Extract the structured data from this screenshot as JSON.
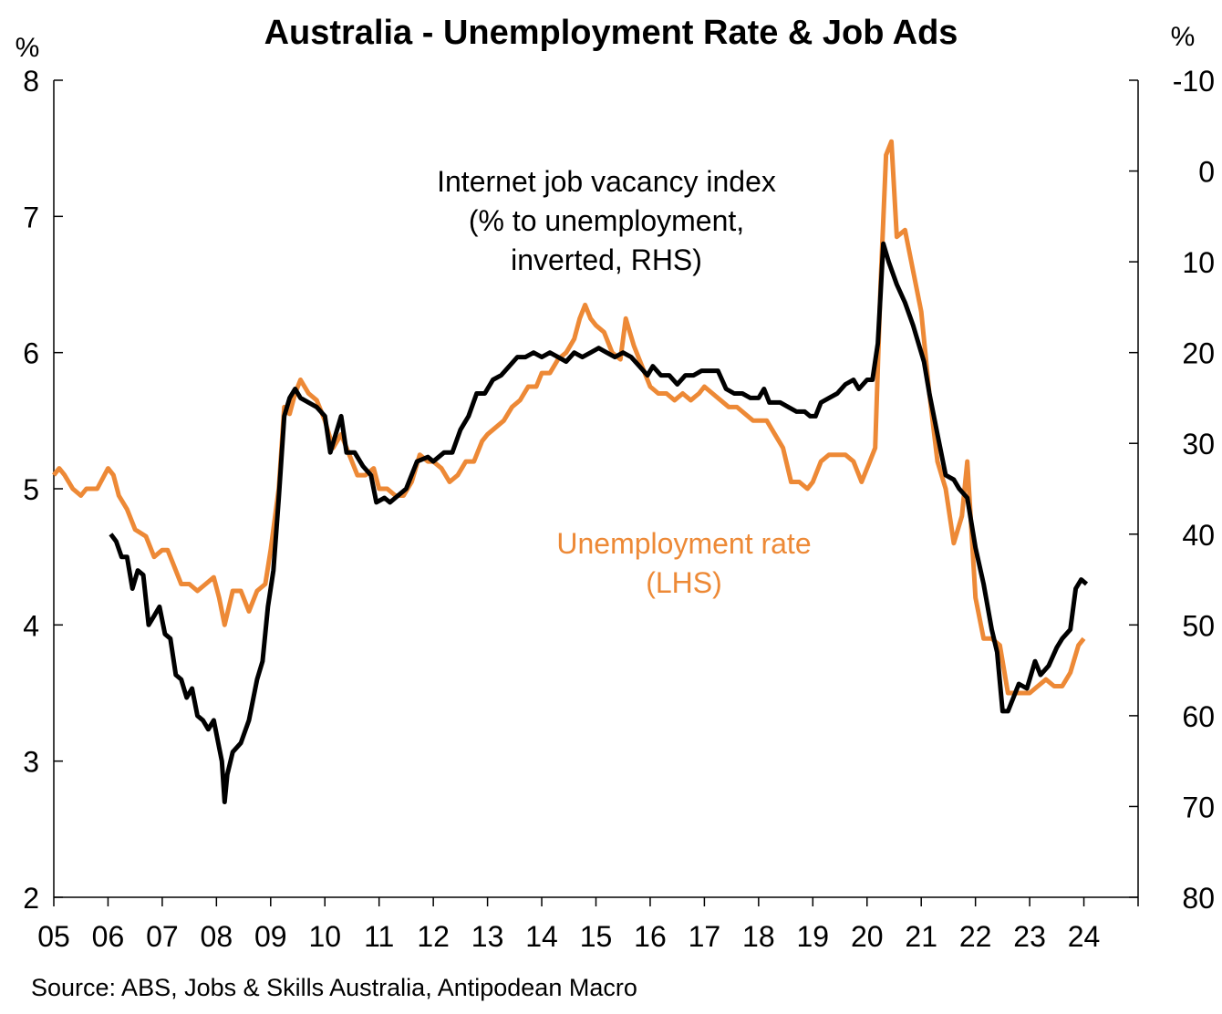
{
  "chart_data": {
    "type": "line",
    "title": "Australia - Unemployment Rate & Job Ads",
    "left_axis": {
      "unit": "%",
      "min": 2,
      "max": 8,
      "ticks": [
        "2",
        "3",
        "4",
        "5",
        "6",
        "7",
        "8"
      ]
    },
    "right_axis": {
      "unit": "%",
      "inverted": true,
      "min": -10,
      "max": 80,
      "ticks": [
        "-10",
        "0",
        "10",
        "20",
        "30",
        "40",
        "50",
        "60",
        "70",
        "80"
      ]
    },
    "x_axis": {
      "min": 2005,
      "max": 2025,
      "tick_labels": [
        "05",
        "06",
        "07",
        "08",
        "09",
        "10",
        "11",
        "12",
        "13",
        "14",
        "15",
        "16",
        "17",
        "18",
        "19",
        "20",
        "21",
        "22",
        "23",
        "24"
      ]
    },
    "grid": false,
    "source": "Source: ABS, Jobs & Skills Australia, Antipodean Macro",
    "annotations": {
      "job_ads": [
        "Internet job vacancy index",
        "(% to unemployment,",
        "inverted, RHS)"
      ],
      "unemployment": [
        "Unemployment rate",
        "(LHS)"
      ]
    },
    "colors": {
      "unemployment": "#ED8936",
      "job_ads": "#000000"
    },
    "series": [
      {
        "key": "unemployment",
        "axis": "left",
        "points": [
          [
            2005.0,
            5.1
          ],
          [
            2005.1,
            5.15
          ],
          [
            2005.2,
            5.1
          ],
          [
            2005.35,
            5.0
          ],
          [
            2005.5,
            4.95
          ],
          [
            2005.6,
            5.0
          ],
          [
            2005.8,
            5.0
          ],
          [
            2006.0,
            5.15
          ],
          [
            2006.1,
            5.1
          ],
          [
            2006.2,
            4.95
          ],
          [
            2006.35,
            4.85
          ],
          [
            2006.5,
            4.7
          ],
          [
            2006.7,
            4.65
          ],
          [
            2006.85,
            4.5
          ],
          [
            2007.0,
            4.55
          ],
          [
            2007.1,
            4.55
          ],
          [
            2007.2,
            4.45
          ],
          [
            2007.35,
            4.3
          ],
          [
            2007.5,
            4.3
          ],
          [
            2007.65,
            4.25
          ],
          [
            2007.8,
            4.3
          ],
          [
            2007.95,
            4.35
          ],
          [
            2008.05,
            4.2
          ],
          [
            2008.15,
            4.0
          ],
          [
            2008.3,
            4.25
          ],
          [
            2008.45,
            4.25
          ],
          [
            2008.6,
            4.1
          ],
          [
            2008.75,
            4.25
          ],
          [
            2008.9,
            4.3
          ],
          [
            2009.0,
            4.55
          ],
          [
            2009.15,
            5.0
          ],
          [
            2009.25,
            5.6
          ],
          [
            2009.35,
            5.55
          ],
          [
            2009.45,
            5.7
          ],
          [
            2009.55,
            5.8
          ],
          [
            2009.7,
            5.7
          ],
          [
            2009.85,
            5.65
          ],
          [
            2010.0,
            5.5
          ],
          [
            2010.15,
            5.3
          ],
          [
            2010.3,
            5.4
          ],
          [
            2010.45,
            5.25
          ],
          [
            2010.6,
            5.1
          ],
          [
            2010.75,
            5.1
          ],
          [
            2010.9,
            5.15
          ],
          [
            2011.0,
            5.0
          ],
          [
            2011.15,
            5.0
          ],
          [
            2011.3,
            4.95
          ],
          [
            2011.45,
            4.95
          ],
          [
            2011.6,
            5.05
          ],
          [
            2011.75,
            5.25
          ],
          [
            2011.9,
            5.2
          ],
          [
            2012.0,
            5.2
          ],
          [
            2012.15,
            5.15
          ],
          [
            2012.3,
            5.05
          ],
          [
            2012.45,
            5.1
          ],
          [
            2012.6,
            5.2
          ],
          [
            2012.75,
            5.2
          ],
          [
            2012.9,
            5.35
          ],
          [
            2013.0,
            5.4
          ],
          [
            2013.15,
            5.45
          ],
          [
            2013.3,
            5.5
          ],
          [
            2013.45,
            5.6
          ],
          [
            2013.6,
            5.65
          ],
          [
            2013.75,
            5.75
          ],
          [
            2013.9,
            5.75
          ],
          [
            2014.0,
            5.85
          ],
          [
            2014.15,
            5.85
          ],
          [
            2014.3,
            5.95
          ],
          [
            2014.45,
            6.0
          ],
          [
            2014.6,
            6.1
          ],
          [
            2014.7,
            6.25
          ],
          [
            2014.8,
            6.35
          ],
          [
            2014.9,
            6.25
          ],
          [
            2015.0,
            6.2
          ],
          [
            2015.15,
            6.15
          ],
          [
            2015.3,
            6.0
          ],
          [
            2015.45,
            5.95
          ],
          [
            2015.55,
            6.25
          ],
          [
            2015.7,
            6.05
          ],
          [
            2015.85,
            5.9
          ],
          [
            2016.0,
            5.75
          ],
          [
            2016.15,
            5.7
          ],
          [
            2016.3,
            5.7
          ],
          [
            2016.45,
            5.65
          ],
          [
            2016.6,
            5.7
          ],
          [
            2016.75,
            5.65
          ],
          [
            2016.9,
            5.7
          ],
          [
            2017.0,
            5.75
          ],
          [
            2017.15,
            5.7
          ],
          [
            2017.3,
            5.65
          ],
          [
            2017.45,
            5.6
          ],
          [
            2017.6,
            5.6
          ],
          [
            2017.75,
            5.55
          ],
          [
            2017.9,
            5.5
          ],
          [
            2018.0,
            5.5
          ],
          [
            2018.15,
            5.5
          ],
          [
            2018.3,
            5.4
          ],
          [
            2018.45,
            5.3
          ],
          [
            2018.6,
            5.05
          ],
          [
            2018.75,
            5.05
          ],
          [
            2018.9,
            5.0
          ],
          [
            2019.0,
            5.05
          ],
          [
            2019.15,
            5.2
          ],
          [
            2019.3,
            5.25
          ],
          [
            2019.45,
            5.25
          ],
          [
            2019.6,
            5.25
          ],
          [
            2019.75,
            5.2
          ],
          [
            2019.9,
            5.05
          ],
          [
            2020.0,
            5.15
          ],
          [
            2020.15,
            5.3
          ],
          [
            2020.25,
            6.5
          ],
          [
            2020.35,
            7.45
          ],
          [
            2020.45,
            7.55
          ],
          [
            2020.55,
            6.85
          ],
          [
            2020.7,
            6.9
          ],
          [
            2020.85,
            6.6
          ],
          [
            2021.0,
            6.3
          ],
          [
            2021.15,
            5.7
          ],
          [
            2021.3,
            5.2
          ],
          [
            2021.45,
            5.0
          ],
          [
            2021.6,
            4.6
          ],
          [
            2021.75,
            4.8
          ],
          [
            2021.85,
            5.2
          ],
          [
            2022.0,
            4.2
          ],
          [
            2022.15,
            3.9
          ],
          [
            2022.3,
            3.9
          ],
          [
            2022.45,
            3.85
          ],
          [
            2022.6,
            3.5
          ],
          [
            2022.75,
            3.5
          ],
          [
            2022.9,
            3.5
          ],
          [
            2023.0,
            3.5
          ],
          [
            2023.15,
            3.55
          ],
          [
            2023.3,
            3.6
          ],
          [
            2023.45,
            3.55
          ],
          [
            2023.6,
            3.55
          ],
          [
            2023.75,
            3.65
          ],
          [
            2023.9,
            3.85
          ],
          [
            2024.0,
            3.9
          ]
        ]
      },
      {
        "key": "job_ads",
        "axis": "right",
        "points": [
          [
            2006.05,
            40.0
          ],
          [
            2006.15,
            40.8
          ],
          [
            2006.25,
            42.5
          ],
          [
            2006.35,
            42.5
          ],
          [
            2006.45,
            46.0
          ],
          [
            2006.55,
            44.0
          ],
          [
            2006.65,
            44.5
          ],
          [
            2006.75,
            50.0
          ],
          [
            2006.85,
            49.0
          ],
          [
            2006.95,
            48.0
          ],
          [
            2007.05,
            51.0
          ],
          [
            2007.15,
            51.5
          ],
          [
            2007.25,
            55.5
          ],
          [
            2007.35,
            56.0
          ],
          [
            2007.45,
            58.0
          ],
          [
            2007.55,
            57.0
          ],
          [
            2007.65,
            60.0
          ],
          [
            2007.75,
            60.5
          ],
          [
            2007.85,
            61.5
          ],
          [
            2007.95,
            60.5
          ],
          [
            2008.05,
            63.5
          ],
          [
            2008.1,
            65.0
          ],
          [
            2008.15,
            69.5
          ],
          [
            2008.2,
            66.5
          ],
          [
            2008.3,
            64.0
          ],
          [
            2008.45,
            63.0
          ],
          [
            2008.6,
            60.5
          ],
          [
            2008.75,
            56.0
          ],
          [
            2008.85,
            54.0
          ],
          [
            2008.95,
            48.0
          ],
          [
            2009.05,
            44.0
          ],
          [
            2009.15,
            36.0
          ],
          [
            2009.25,
            27.0
          ],
          [
            2009.35,
            25.0
          ],
          [
            2009.45,
            24.0
          ],
          [
            2009.55,
            25.0
          ],
          [
            2009.7,
            25.5
          ],
          [
            2009.85,
            26.0
          ],
          [
            2010.0,
            27.0
          ],
          [
            2010.1,
            31.0
          ],
          [
            2010.2,
            29.0
          ],
          [
            2010.3,
            27.0
          ],
          [
            2010.4,
            31.0
          ],
          [
            2010.55,
            31.0
          ],
          [
            2010.7,
            32.5
          ],
          [
            2010.85,
            33.5
          ],
          [
            2010.95,
            36.5
          ],
          [
            2011.1,
            36.0
          ],
          [
            2011.2,
            36.5
          ],
          [
            2011.3,
            36.0
          ],
          [
            2011.5,
            35.0
          ],
          [
            2011.7,
            32.0
          ],
          [
            2011.9,
            31.5
          ],
          [
            2012.0,
            32.0
          ],
          [
            2012.2,
            31.0
          ],
          [
            2012.35,
            31.0
          ],
          [
            2012.5,
            28.5
          ],
          [
            2012.65,
            27.0
          ],
          [
            2012.8,
            24.5
          ],
          [
            2012.95,
            24.5
          ],
          [
            2013.1,
            23.0
          ],
          [
            2013.25,
            22.5
          ],
          [
            2013.4,
            21.5
          ],
          [
            2013.55,
            20.5
          ],
          [
            2013.7,
            20.5
          ],
          [
            2013.85,
            20.0
          ],
          [
            2014.0,
            20.5
          ],
          [
            2014.15,
            20.0
          ],
          [
            2014.3,
            20.5
          ],
          [
            2014.45,
            21.0
          ],
          [
            2014.6,
            20.0
          ],
          [
            2014.75,
            20.5
          ],
          [
            2014.9,
            20.0
          ],
          [
            2015.05,
            19.5
          ],
          [
            2015.2,
            20.0
          ],
          [
            2015.35,
            20.5
          ],
          [
            2015.5,
            20.0
          ],
          [
            2015.65,
            20.5
          ],
          [
            2015.8,
            21.5
          ],
          [
            2015.95,
            22.5
          ],
          [
            2016.05,
            21.5
          ],
          [
            2016.2,
            22.5
          ],
          [
            2016.35,
            22.5
          ],
          [
            2016.5,
            23.5
          ],
          [
            2016.65,
            22.5
          ],
          [
            2016.8,
            22.5
          ],
          [
            2016.95,
            22.0
          ],
          [
            2017.1,
            22.0
          ],
          [
            2017.25,
            22.0
          ],
          [
            2017.4,
            24.0
          ],
          [
            2017.55,
            24.5
          ],
          [
            2017.7,
            24.5
          ],
          [
            2017.85,
            25.0
          ],
          [
            2018.0,
            25.0
          ],
          [
            2018.1,
            24.0
          ],
          [
            2018.2,
            25.5
          ],
          [
            2018.4,
            25.5
          ],
          [
            2018.55,
            26.0
          ],
          [
            2018.7,
            26.5
          ],
          [
            2018.85,
            26.5
          ],
          [
            2018.95,
            27.0
          ],
          [
            2019.05,
            27.0
          ],
          [
            2019.15,
            25.5
          ],
          [
            2019.3,
            25.0
          ],
          [
            2019.45,
            24.5
          ],
          [
            2019.6,
            23.5
          ],
          [
            2019.75,
            23.0
          ],
          [
            2019.85,
            24.0
          ],
          [
            2020.0,
            23.0
          ],
          [
            2020.1,
            23.0
          ],
          [
            2020.2,
            19.0
          ],
          [
            2020.3,
            8.0
          ],
          [
            2020.4,
            10.0
          ],
          [
            2020.55,
            12.5
          ],
          [
            2020.7,
            14.5
          ],
          [
            2020.85,
            17.0
          ],
          [
            2020.95,
            19.0
          ],
          [
            2021.05,
            21.0
          ],
          [
            2021.15,
            24.5
          ],
          [
            2021.3,
            29.0
          ],
          [
            2021.45,
            33.5
          ],
          [
            2021.6,
            34.0
          ],
          [
            2021.7,
            35.0
          ],
          [
            2021.85,
            36.0
          ],
          [
            2022.0,
            41.5
          ],
          [
            2022.15,
            45.5
          ],
          [
            2022.3,
            50.5
          ],
          [
            2022.4,
            53.0
          ],
          [
            2022.5,
            59.5
          ],
          [
            2022.6,
            59.5
          ],
          [
            2022.7,
            58.0
          ],
          [
            2022.8,
            56.5
          ],
          [
            2022.95,
            57.0
          ],
          [
            2023.1,
            54.0
          ],
          [
            2023.2,
            55.5
          ],
          [
            2023.35,
            54.5
          ],
          [
            2023.5,
            52.5
          ],
          [
            2023.6,
            51.5
          ],
          [
            2023.75,
            50.5
          ],
          [
            2023.85,
            46.0
          ],
          [
            2023.95,
            45.0
          ],
          [
            2024.05,
            45.5
          ]
        ]
      }
    ]
  }
}
